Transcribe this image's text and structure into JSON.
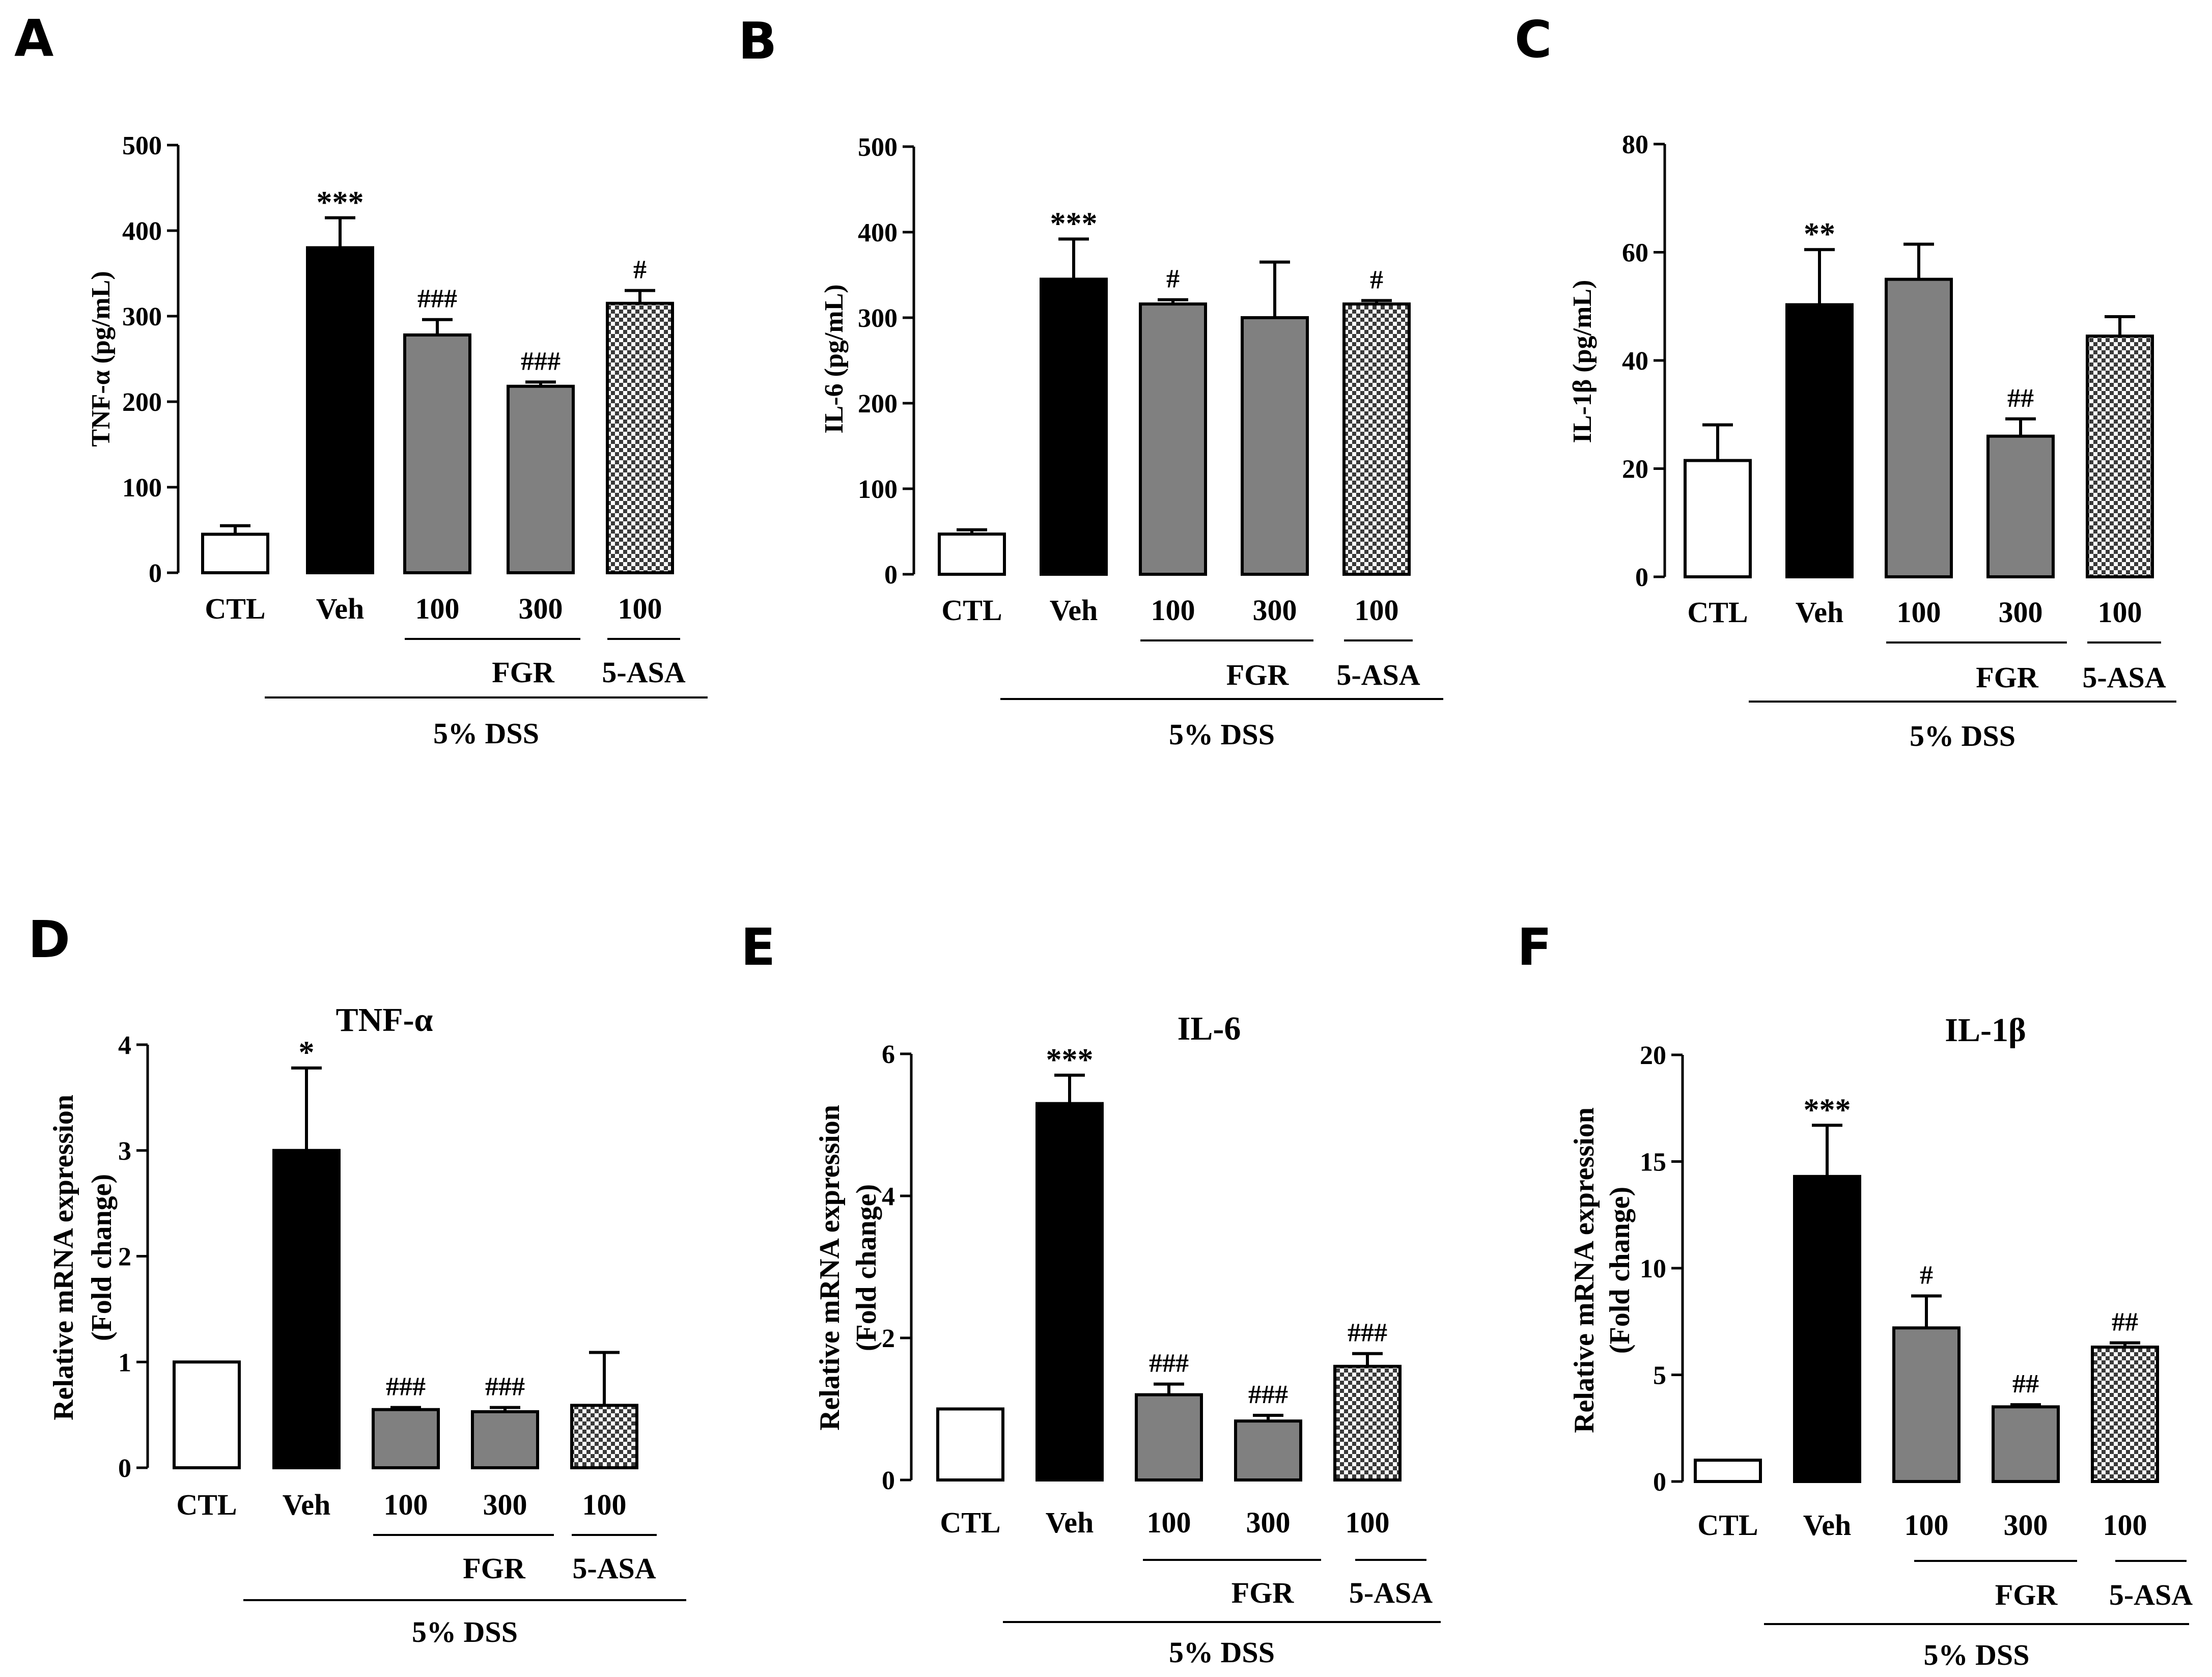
{
  "colors": {
    "ctl": "#ffffff",
    "veh": "#000000",
    "fgr": "#808080",
    "asa_light": "#ffffff",
    "asa_dark": "#3a3a3a",
    "stroke": "#000000"
  },
  "chart_data": [
    {
      "panel": "A",
      "type": "bar",
      "title": "",
      "ylabel": "TNF-α (pg/mL)",
      "ylim": [
        0,
        500
      ],
      "yticks": [
        0,
        100,
        200,
        300,
        400,
        500
      ],
      "ytick_labels": [
        "0",
        "100",
        "200",
        "300",
        "400",
        "500"
      ],
      "categories": [
        "CTL",
        "Veh",
        "100",
        "300",
        "100"
      ],
      "values": [
        45,
        380,
        278,
        218,
        315
      ],
      "errors": [
        10,
        35,
        18,
        5,
        15
      ],
      "annotations": [
        "",
        "***",
        "###",
        "###",
        "#"
      ],
      "fills": [
        "ctl",
        "veh",
        "fgr",
        "fgr",
        "asa"
      ],
      "groups": {
        "fgr": "FGR",
        "asa": "5-ASA",
        "dss": "5% DSS"
      }
    },
    {
      "panel": "B",
      "type": "bar",
      "title": "",
      "ylabel": "IL-6 (pg/mL)",
      "ylim": [
        0,
        500
      ],
      "yticks": [
        0,
        100,
        200,
        300,
        400,
        500
      ],
      "ytick_labels": [
        "0",
        "100",
        "200",
        "300",
        "400",
        "500"
      ],
      "categories": [
        "CTL",
        "Veh",
        "100",
        "300",
        "100"
      ],
      "values": [
        47,
        345,
        316,
        300,
        316
      ],
      "errors": [
        5,
        47,
        5,
        65,
        4
      ],
      "annotations": [
        "",
        "***",
        "#",
        "",
        "#"
      ],
      "fills": [
        "ctl",
        "veh",
        "fgr",
        "fgr",
        "asa"
      ],
      "groups": {
        "fgr": "FGR",
        "asa": "5-ASA",
        "dss": "5% DSS"
      }
    },
    {
      "panel": "C",
      "type": "bar",
      "title": "",
      "ylabel": "IL-1β (pg/mL)",
      "ylim": [
        0,
        80
      ],
      "yticks": [
        0,
        20,
        40,
        60,
        80
      ],
      "ytick_labels": [
        "0",
        "20",
        "40",
        "60",
        "80"
      ],
      "categories": [
        "CTL",
        "Veh",
        "100",
        "300",
        "100"
      ],
      "values": [
        21.5,
        50.3,
        55,
        26,
        44.5
      ],
      "errors": [
        6.6,
        10.2,
        6.5,
        3.2,
        3.6
      ],
      "annotations": [
        "",
        "**",
        "",
        "##",
        ""
      ],
      "fills": [
        "ctl",
        "veh",
        "fgr",
        "fgr",
        "asa"
      ],
      "groups": {
        "fgr": "FGR",
        "asa": "5-ASA",
        "dss": "5% DSS"
      }
    },
    {
      "panel": "D",
      "type": "bar",
      "title": "TNF-α",
      "ylabel": "Relative mRNA expression",
      "ylabel2": "(Fold change)",
      "ylim": [
        0,
        4
      ],
      "yticks": [
        0,
        1,
        2,
        3,
        4
      ],
      "ytick_labels": [
        "0",
        "1",
        "2",
        "3",
        "4"
      ],
      "categories": [
        "CTL",
        "Veh",
        "100",
        "300",
        "100"
      ],
      "values": [
        1.0,
        3.0,
        0.55,
        0.53,
        0.59
      ],
      "errors": [
        0,
        0.78,
        0.02,
        0.04,
        0.5
      ],
      "annotations": [
        "",
        "*",
        "###",
        "###",
        ""
      ],
      "fills": [
        "ctl",
        "veh",
        "fgr",
        "fgr",
        "asa"
      ],
      "groups": {
        "fgr": "FGR",
        "asa": "5-ASA",
        "dss": "5% DSS"
      }
    },
    {
      "panel": "E",
      "type": "bar",
      "title": "IL-6",
      "ylabel": "Relative mRNA expression",
      "ylabel2": "(Fold change)",
      "ylim": [
        0,
        6
      ],
      "yticks": [
        0,
        2,
        4,
        6
      ],
      "ytick_labels": [
        "0",
        "2",
        "4",
        "6"
      ],
      "categories": [
        "CTL",
        "Veh",
        "100",
        "300",
        "100"
      ],
      "values": [
        1.0,
        5.3,
        1.2,
        0.83,
        1.6
      ],
      "errors": [
        0,
        0.4,
        0.15,
        0.08,
        0.18
      ],
      "annotations": [
        "",
        "***",
        "###",
        "###",
        "###"
      ],
      "fills": [
        "ctl",
        "veh",
        "fgr",
        "fgr",
        "asa"
      ],
      "groups": {
        "fgr": "FGR",
        "asa": "5-ASA",
        "dss": "5% DSS"
      }
    },
    {
      "panel": "F",
      "type": "bar",
      "title": "IL-1β",
      "ylabel": "Relative mRNA expression",
      "ylabel2": "(Fold change)",
      "ylim": [
        0,
        20
      ],
      "yticks": [
        0,
        5,
        10,
        15,
        20
      ],
      "ytick_labels": [
        "0",
        "5",
        "10",
        "15",
        "20"
      ],
      "categories": [
        "CTL",
        "Veh",
        "100",
        "300",
        "100"
      ],
      "values": [
        1.0,
        14.3,
        7.2,
        3.5,
        6.3
      ],
      "errors": [
        0,
        2.4,
        1.5,
        0.1,
        0.2
      ],
      "annotations": [
        "",
        "***",
        "#",
        "##",
        "##"
      ],
      "fills": [
        "ctl",
        "veh",
        "fgr",
        "fgr",
        "asa"
      ],
      "groups": {
        "fgr": "FGR",
        "asa": "5-ASA",
        "dss": "5% DSS"
      }
    }
  ]
}
